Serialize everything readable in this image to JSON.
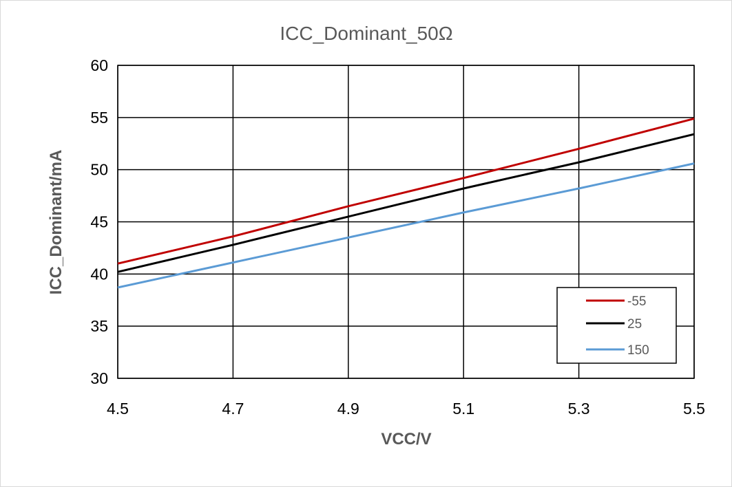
{
  "chart_data": {
    "type": "line",
    "title": "ICC_Dominant_50Ω",
    "xlabel": "VCC/V",
    "ylabel": "ICC_Dominant/mA",
    "xlim": [
      4.5,
      5.5
    ],
    "ylim": [
      30,
      60
    ],
    "x_ticks": [
      "4.5",
      "4.7",
      "4.9",
      "5.1",
      "5.3",
      "5.5"
    ],
    "y_ticks": [
      "30",
      "35",
      "40",
      "45",
      "50",
      "55",
      "60"
    ],
    "grid": true,
    "legend_position": "bottom-right",
    "x": [
      4.5,
      4.7,
      4.9,
      5.1,
      5.3,
      5.5
    ],
    "series": [
      {
        "name": "-55",
        "color": "#c00000",
        "values": [
          41.0,
          43.6,
          46.5,
          49.2,
          52.0,
          54.9
        ]
      },
      {
        "name": "25",
        "color": "#000000",
        "values": [
          40.2,
          42.8,
          45.5,
          48.2,
          50.7,
          53.4
        ]
      },
      {
        "name": "150",
        "color": "#5b9bd5",
        "values": [
          38.7,
          41.1,
          43.5,
          45.9,
          48.2,
          50.6
        ]
      }
    ]
  }
}
